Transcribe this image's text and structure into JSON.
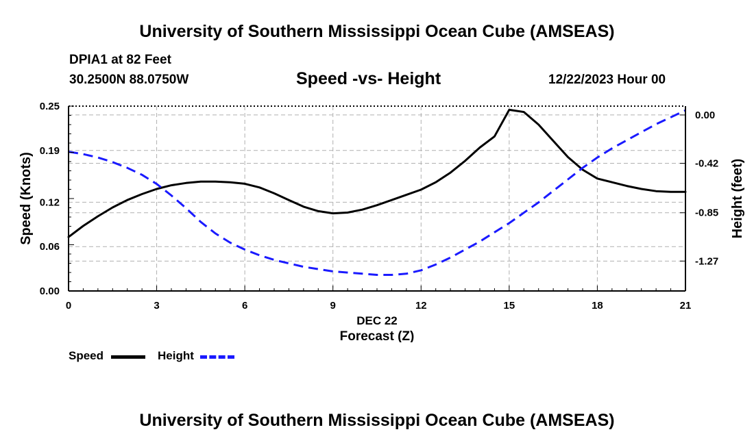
{
  "header": {
    "title": "University of Southern Mississippi Ocean Cube (AMSEAS)",
    "station": "DPIA1 at 82 Feet",
    "coords": "30.2500N  88.0750W",
    "subtitle": "Speed -vs- Height",
    "datetime": "12/22/2023 Hour 00"
  },
  "footer": {
    "title": "University of Southern Mississippi Ocean Cube (AMSEAS)"
  },
  "colors": {
    "speed": "#000000",
    "height": "#1a1aff",
    "grid": "#b0b0b0"
  },
  "chart_data": {
    "type": "line",
    "title": "Speed -vs- Height",
    "xlabel": "Forecast (Z)",
    "xlabel_date": "DEC 22",
    "ylabel": "Speed (Knots)",
    "y2label": "Height (feet)",
    "xlim": [
      0,
      21
    ],
    "ylim": [
      0,
      0.25
    ],
    "y2lim": [
      -1.53,
      0.077
    ],
    "x_ticks": [
      0,
      3,
      6,
      9,
      12,
      15,
      18,
      21
    ],
    "y_ticks": [
      "0.00",
      "0.06",
      "0.12",
      "0.19",
      "0.25"
    ],
    "y2_ticks": [
      "0.00",
      "-0.42",
      "-0.85",
      "-1.27"
    ],
    "grid": true,
    "legend": {
      "position": "bottom-left",
      "entries": [
        "Speed",
        "Height"
      ]
    },
    "series": [
      {
        "name": "Speed",
        "axis": "left",
        "style": "solid",
        "x": [
          0,
          0.5,
          1,
          1.5,
          2,
          2.5,
          3,
          3.5,
          4,
          4.5,
          5,
          5.5,
          6,
          6.5,
          7,
          7.5,
          8,
          8.5,
          9,
          9.5,
          10,
          10.5,
          11,
          11.5,
          12,
          12.5,
          13,
          13.5,
          14,
          14.5,
          15,
          15.5,
          16,
          16.5,
          17,
          17.5,
          18,
          18.5,
          19,
          19.5,
          20,
          20.5,
          21
        ],
        "values": [
          0.073,
          0.088,
          0.101,
          0.113,
          0.123,
          0.131,
          0.138,
          0.143,
          0.146,
          0.148,
          0.148,
          0.147,
          0.145,
          0.14,
          0.132,
          0.123,
          0.114,
          0.108,
          0.105,
          0.106,
          0.11,
          0.116,
          0.123,
          0.13,
          0.137,
          0.147,
          0.16,
          0.176,
          0.194,
          0.209,
          0.245,
          0.242,
          0.225,
          0.203,
          0.181,
          0.164,
          0.152,
          0.147,
          0.142,
          0.138,
          0.135,
          0.134,
          0.134
        ]
      },
      {
        "name": "Height",
        "axis": "right",
        "style": "dashed",
        "x": [
          0,
          0.5,
          1,
          1.5,
          2,
          2.5,
          3,
          3.5,
          4,
          4.5,
          5,
          5.5,
          6,
          6.5,
          7,
          7.5,
          8,
          8.5,
          9,
          9.5,
          10,
          10.5,
          11,
          11.5,
          12,
          12.5,
          13,
          13.5,
          14,
          14.5,
          15,
          15.5,
          16,
          16.5,
          17,
          17.5,
          18,
          18.5,
          19,
          19.5,
          20,
          20.5,
          21
        ],
        "values": [
          -0.32,
          -0.34,
          -0.37,
          -0.41,
          -0.46,
          -0.52,
          -0.6,
          -0.7,
          -0.81,
          -0.93,
          -1.03,
          -1.11,
          -1.17,
          -1.22,
          -1.26,
          -1.29,
          -1.32,
          -1.34,
          -1.36,
          -1.37,
          -1.38,
          -1.39,
          -1.39,
          -1.38,
          -1.35,
          -1.3,
          -1.24,
          -1.17,
          -1.1,
          -1.02,
          -0.94,
          -0.85,
          -0.76,
          -0.66,
          -0.56,
          -0.46,
          -0.37,
          -0.29,
          -0.22,
          -0.15,
          -0.08,
          -0.02,
          0.04
        ]
      }
    ]
  }
}
